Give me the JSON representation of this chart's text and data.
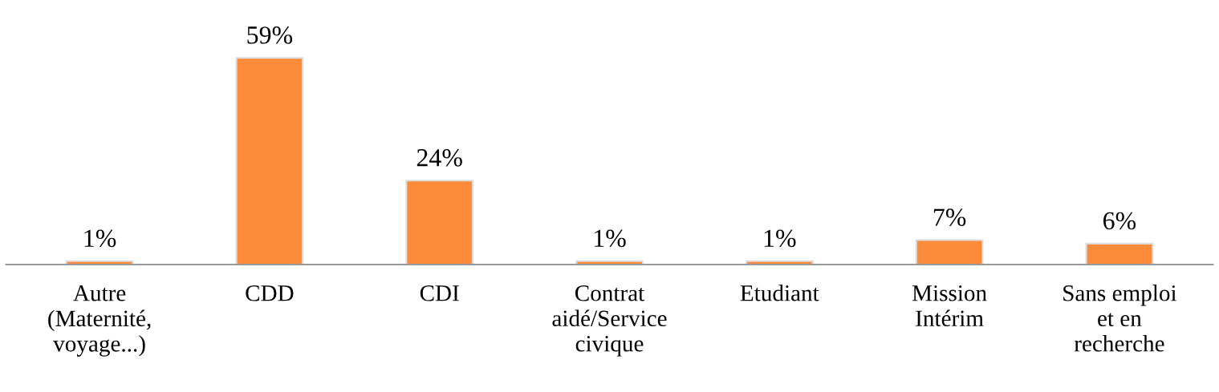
{
  "chart_data": {
    "type": "bar",
    "categories": [
      "Autre\n(Maternité,\nvoyage...)",
      "CDD",
      "CDI",
      "Contrat\naidé/Service\ncivique",
      "Etudiant",
      "Mission\nIntérim",
      "Sans emploi\net en\nrecherche"
    ],
    "values": [
      1,
      59,
      24,
      1,
      1,
      7,
      6
    ],
    "value_labels": [
      "1%",
      "59%",
      "24%",
      "1%",
      "1%",
      "7%",
      "6%"
    ],
    "color": "#fd8b3a",
    "grid": false,
    "legend": false
  }
}
